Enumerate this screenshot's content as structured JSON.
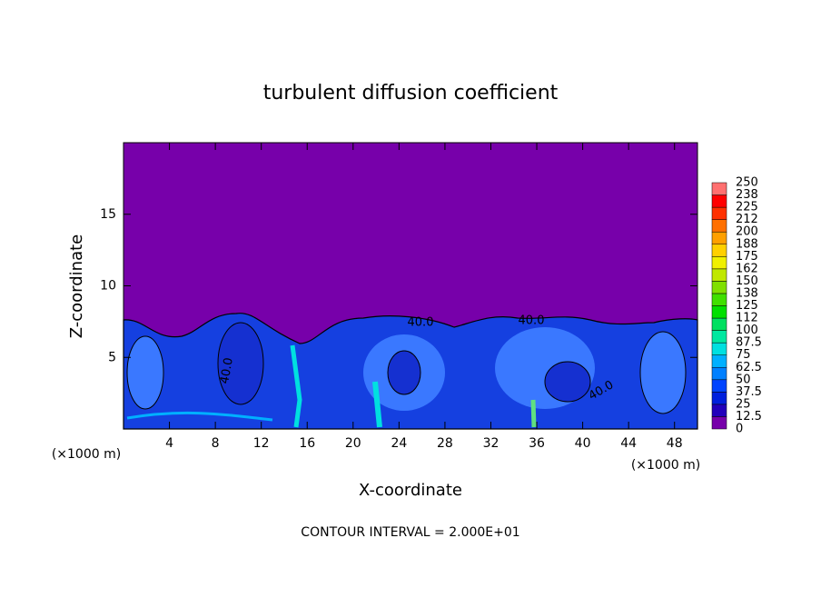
{
  "chart_data": {
    "type": "contour",
    "title": "turbulent diffusion coefficient",
    "x_label": "X-coordinate",
    "y_label": "Z-coordinate",
    "x_unit": "(×1000 m)",
    "y_unit": "(×1000 m)",
    "footer": "CONTOUR INTERVAL = 2.000E+01",
    "xlim": [
      0,
      50
    ],
    "xticks": [
      4,
      8,
      12,
      16,
      20,
      24,
      28,
      32,
      36,
      40,
      44,
      48
    ],
    "ylim": [
      0,
      20
    ],
    "yticks": [
      5,
      10,
      15
    ],
    "contour_labels": [
      "40.0",
      "40.0",
      "40.0",
      "40.0"
    ],
    "colorbar": {
      "ticks": [
        0,
        12.5,
        25,
        37.5,
        50,
        62.5,
        75,
        87.5,
        100,
        112,
        125,
        138,
        150,
        162,
        175,
        188,
        200,
        212,
        225,
        238,
        250
      ],
      "colors": [
        "#7700aa",
        "#2200bb",
        "#0020dd",
        "#0044ff",
        "#0080ff",
        "#00b0ff",
        "#00e0e0",
        "#00e8a0",
        "#00e060",
        "#00e000",
        "#40e000",
        "#80e000",
        "#c0e800",
        "#f0f000",
        "#ffd000",
        "#ffa000",
        "#ff7000",
        "#ff3000",
        "#ff0000",
        "#ff7070"
      ]
    }
  }
}
